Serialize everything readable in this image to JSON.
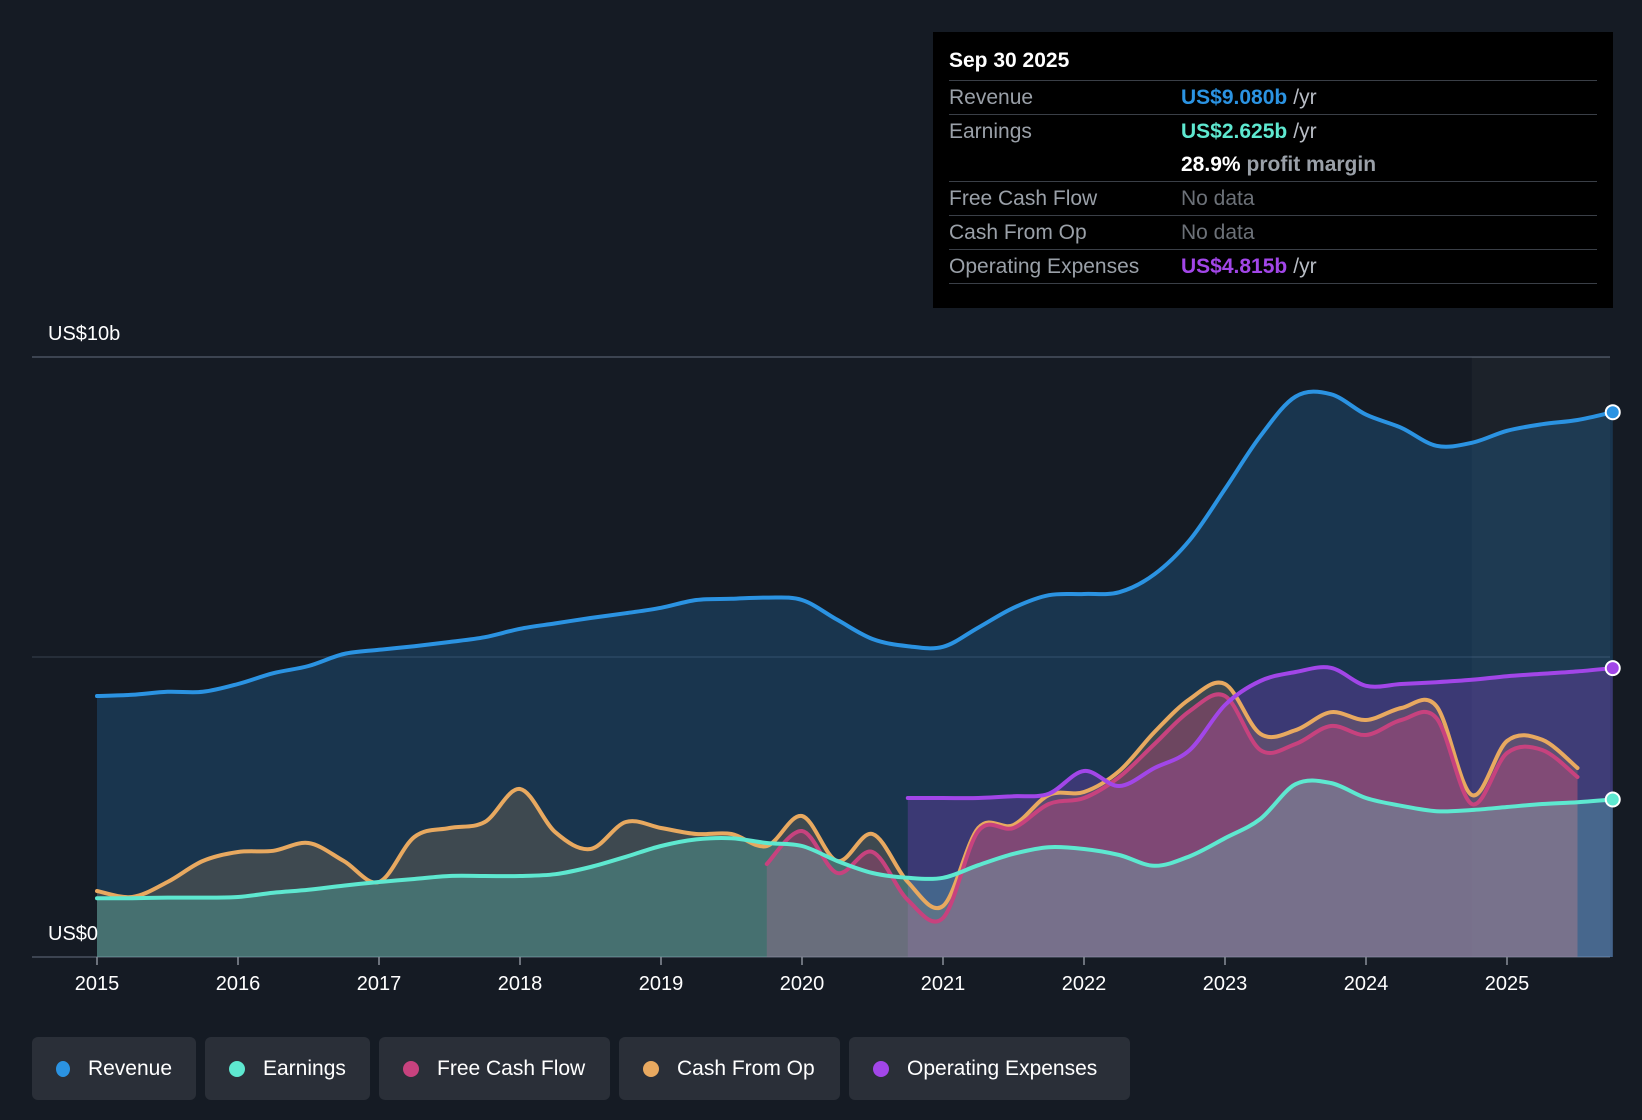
{
  "chart_data": {
    "type": "line",
    "y_axis": {
      "top_label": "US$10b",
      "bottom_label": "US$0",
      "ylim": [
        0,
        10
      ]
    },
    "x_ticks": [
      "2015",
      "2016",
      "2017",
      "2018",
      "2019",
      "2020",
      "2021",
      "2022",
      "2023",
      "2024",
      "2025"
    ],
    "series": [
      {
        "name": "Revenue",
        "key": "revenue",
        "color": "#2b93e2",
        "points": [
          [
            2015.0,
            4.35
          ],
          [
            2015.25,
            4.37
          ],
          [
            2015.5,
            4.42
          ],
          [
            2015.75,
            4.42
          ],
          [
            2016.0,
            4.55
          ],
          [
            2016.25,
            4.73
          ],
          [
            2016.5,
            4.85
          ],
          [
            2016.75,
            5.05
          ],
          [
            2017.0,
            5.12
          ],
          [
            2017.25,
            5.18
          ],
          [
            2017.5,
            5.25
          ],
          [
            2017.75,
            5.33
          ],
          [
            2018.0,
            5.47
          ],
          [
            2018.25,
            5.56
          ],
          [
            2018.5,
            5.65
          ],
          [
            2018.75,
            5.73
          ],
          [
            2019.0,
            5.82
          ],
          [
            2019.25,
            5.95
          ],
          [
            2019.5,
            5.97
          ],
          [
            2019.75,
            5.99
          ],
          [
            2020.0,
            5.95
          ],
          [
            2020.25,
            5.62
          ],
          [
            2020.5,
            5.3
          ],
          [
            2020.75,
            5.18
          ],
          [
            2021.0,
            5.17
          ],
          [
            2021.25,
            5.49
          ],
          [
            2021.5,
            5.82
          ],
          [
            2021.75,
            6.03
          ],
          [
            2022.0,
            6.05
          ],
          [
            2022.25,
            6.08
          ],
          [
            2022.5,
            6.38
          ],
          [
            2022.75,
            6.95
          ],
          [
            2023.0,
            7.8
          ],
          [
            2023.25,
            8.68
          ],
          [
            2023.5,
            9.34
          ],
          [
            2023.75,
            9.38
          ],
          [
            2024.0,
            9.04
          ],
          [
            2024.25,
            8.82
          ],
          [
            2024.5,
            8.52
          ],
          [
            2024.75,
            8.57
          ],
          [
            2025.0,
            8.77
          ],
          [
            2025.25,
            8.88
          ],
          [
            2025.5,
            8.95
          ],
          [
            2025.75,
            9.08
          ]
        ]
      },
      {
        "name": "Earnings",
        "key": "earnings",
        "color": "#5ee8d0",
        "points": [
          [
            2015.0,
            0.98
          ],
          [
            2015.25,
            0.98
          ],
          [
            2015.5,
            0.99
          ],
          [
            2015.75,
            0.99
          ],
          [
            2016.0,
            1.0
          ],
          [
            2016.25,
            1.07
          ],
          [
            2016.5,
            1.12
          ],
          [
            2016.75,
            1.19
          ],
          [
            2017.0,
            1.25
          ],
          [
            2017.25,
            1.3
          ],
          [
            2017.5,
            1.35
          ],
          [
            2017.75,
            1.35
          ],
          [
            2018.0,
            1.35
          ],
          [
            2018.25,
            1.38
          ],
          [
            2018.5,
            1.5
          ],
          [
            2018.75,
            1.67
          ],
          [
            2019.0,
            1.85
          ],
          [
            2019.25,
            1.96
          ],
          [
            2019.5,
            1.98
          ],
          [
            2019.75,
            1.9
          ],
          [
            2020.0,
            1.85
          ],
          [
            2020.25,
            1.6
          ],
          [
            2020.5,
            1.4
          ],
          [
            2020.75,
            1.32
          ],
          [
            2021.0,
            1.32
          ],
          [
            2021.25,
            1.53
          ],
          [
            2021.5,
            1.72
          ],
          [
            2021.75,
            1.83
          ],
          [
            2022.0,
            1.8
          ],
          [
            2022.25,
            1.7
          ],
          [
            2022.5,
            1.52
          ],
          [
            2022.75,
            1.68
          ],
          [
            2023.0,
            1.98
          ],
          [
            2023.25,
            2.3
          ],
          [
            2023.5,
            2.88
          ],
          [
            2023.75,
            2.9
          ],
          [
            2024.0,
            2.65
          ],
          [
            2024.25,
            2.52
          ],
          [
            2024.5,
            2.43
          ],
          [
            2024.75,
            2.45
          ],
          [
            2025.0,
            2.5
          ],
          [
            2025.25,
            2.55
          ],
          [
            2025.5,
            2.58
          ],
          [
            2025.75,
            2.625
          ]
        ]
      },
      {
        "name": "Free Cash Flow",
        "key": "fcf",
        "color": "#c7427e",
        "points": [
          [
            2019.75,
            1.55
          ],
          [
            2020.0,
            2.1
          ],
          [
            2020.25,
            1.4
          ],
          [
            2020.5,
            1.75
          ],
          [
            2020.75,
            0.95
          ],
          [
            2021.0,
            0.65
          ],
          [
            2021.25,
            2.1
          ],
          [
            2021.5,
            2.15
          ],
          [
            2021.75,
            2.55
          ],
          [
            2022.0,
            2.65
          ],
          [
            2022.25,
            3.0
          ],
          [
            2022.5,
            3.55
          ],
          [
            2022.75,
            4.1
          ],
          [
            2023.0,
            4.35
          ],
          [
            2023.25,
            3.45
          ],
          [
            2023.5,
            3.55
          ],
          [
            2023.75,
            3.85
          ],
          [
            2024.0,
            3.7
          ],
          [
            2024.25,
            3.95
          ],
          [
            2024.5,
            3.98
          ],
          [
            2024.75,
            2.55
          ],
          [
            2025.0,
            3.4
          ],
          [
            2025.25,
            3.45
          ],
          [
            2025.5,
            3.0
          ]
        ]
      },
      {
        "name": "Cash From Op",
        "key": "cfo",
        "color": "#e8a960",
        "points": [
          [
            2015.0,
            1.1
          ],
          [
            2015.25,
            1.0
          ],
          [
            2015.5,
            1.25
          ],
          [
            2015.75,
            1.6
          ],
          [
            2016.0,
            1.75
          ],
          [
            2016.25,
            1.77
          ],
          [
            2016.5,
            1.9
          ],
          [
            2016.75,
            1.6
          ],
          [
            2017.0,
            1.25
          ],
          [
            2017.25,
            2.0
          ],
          [
            2017.5,
            2.15
          ],
          [
            2017.75,
            2.25
          ],
          [
            2018.0,
            2.8
          ],
          [
            2018.25,
            2.08
          ],
          [
            2018.5,
            1.8
          ],
          [
            2018.75,
            2.25
          ],
          [
            2019.0,
            2.15
          ],
          [
            2019.25,
            2.05
          ],
          [
            2019.5,
            2.05
          ],
          [
            2019.75,
            1.85
          ],
          [
            2020.0,
            2.35
          ],
          [
            2020.25,
            1.6
          ],
          [
            2020.5,
            2.05
          ],
          [
            2020.75,
            1.25
          ],
          [
            2021.0,
            0.85
          ],
          [
            2021.25,
            2.15
          ],
          [
            2021.5,
            2.2
          ],
          [
            2021.75,
            2.7
          ],
          [
            2022.0,
            2.75
          ],
          [
            2022.25,
            3.1
          ],
          [
            2022.5,
            3.75
          ],
          [
            2022.75,
            4.3
          ],
          [
            2023.0,
            4.55
          ],
          [
            2023.25,
            3.72
          ],
          [
            2023.5,
            3.78
          ],
          [
            2023.75,
            4.08
          ],
          [
            2024.0,
            3.95
          ],
          [
            2024.25,
            4.15
          ],
          [
            2024.5,
            4.18
          ],
          [
            2024.75,
            2.7
          ],
          [
            2025.0,
            3.6
          ],
          [
            2025.25,
            3.62
          ],
          [
            2025.5,
            3.15
          ]
        ]
      },
      {
        "name": "Operating Expenses",
        "key": "opex",
        "color": "#a246e8",
        "points": [
          [
            2020.75,
            2.65
          ],
          [
            2021.0,
            2.65
          ],
          [
            2021.25,
            2.65
          ],
          [
            2021.5,
            2.68
          ],
          [
            2021.75,
            2.72
          ],
          [
            2022.0,
            3.1
          ],
          [
            2022.25,
            2.85
          ],
          [
            2022.5,
            3.15
          ],
          [
            2022.75,
            3.45
          ],
          [
            2023.0,
            4.2
          ],
          [
            2023.25,
            4.6
          ],
          [
            2023.5,
            4.75
          ],
          [
            2023.75,
            4.82
          ],
          [
            2024.0,
            4.52
          ],
          [
            2024.25,
            4.55
          ],
          [
            2024.5,
            4.58
          ],
          [
            2024.75,
            4.62
          ],
          [
            2025.0,
            4.68
          ],
          [
            2025.25,
            4.72
          ],
          [
            2025.5,
            4.76
          ],
          [
            2025.75,
            4.815
          ]
        ]
      }
    ]
  },
  "tooltip": {
    "date": "Sep 30 2025",
    "revenue_label": "Revenue",
    "revenue_value": "US$9.080b",
    "revenue_unit": "/yr",
    "earnings_label": "Earnings",
    "earnings_value": "US$2.625b",
    "earnings_unit": "/yr",
    "margin_value": "28.9%",
    "margin_label": "profit margin",
    "fcf_label": "Free Cash Flow",
    "fcf_value": "No data",
    "cfo_label": "Cash From Op",
    "cfo_value": "No data",
    "opex_label": "Operating Expenses",
    "opex_value": "US$4.815b",
    "opex_unit": "/yr"
  },
  "legend": {
    "revenue": "Revenue",
    "earnings": "Earnings",
    "fcf": "Free Cash Flow",
    "cfo": "Cash From Op",
    "opex": "Operating Expenses"
  },
  "colors": {
    "background": "#151b24",
    "revenue": "#2b93e2",
    "earnings": "#5ee8d0",
    "fcf": "#c7427e",
    "cfo": "#e8a960",
    "opex": "#a246e8"
  }
}
